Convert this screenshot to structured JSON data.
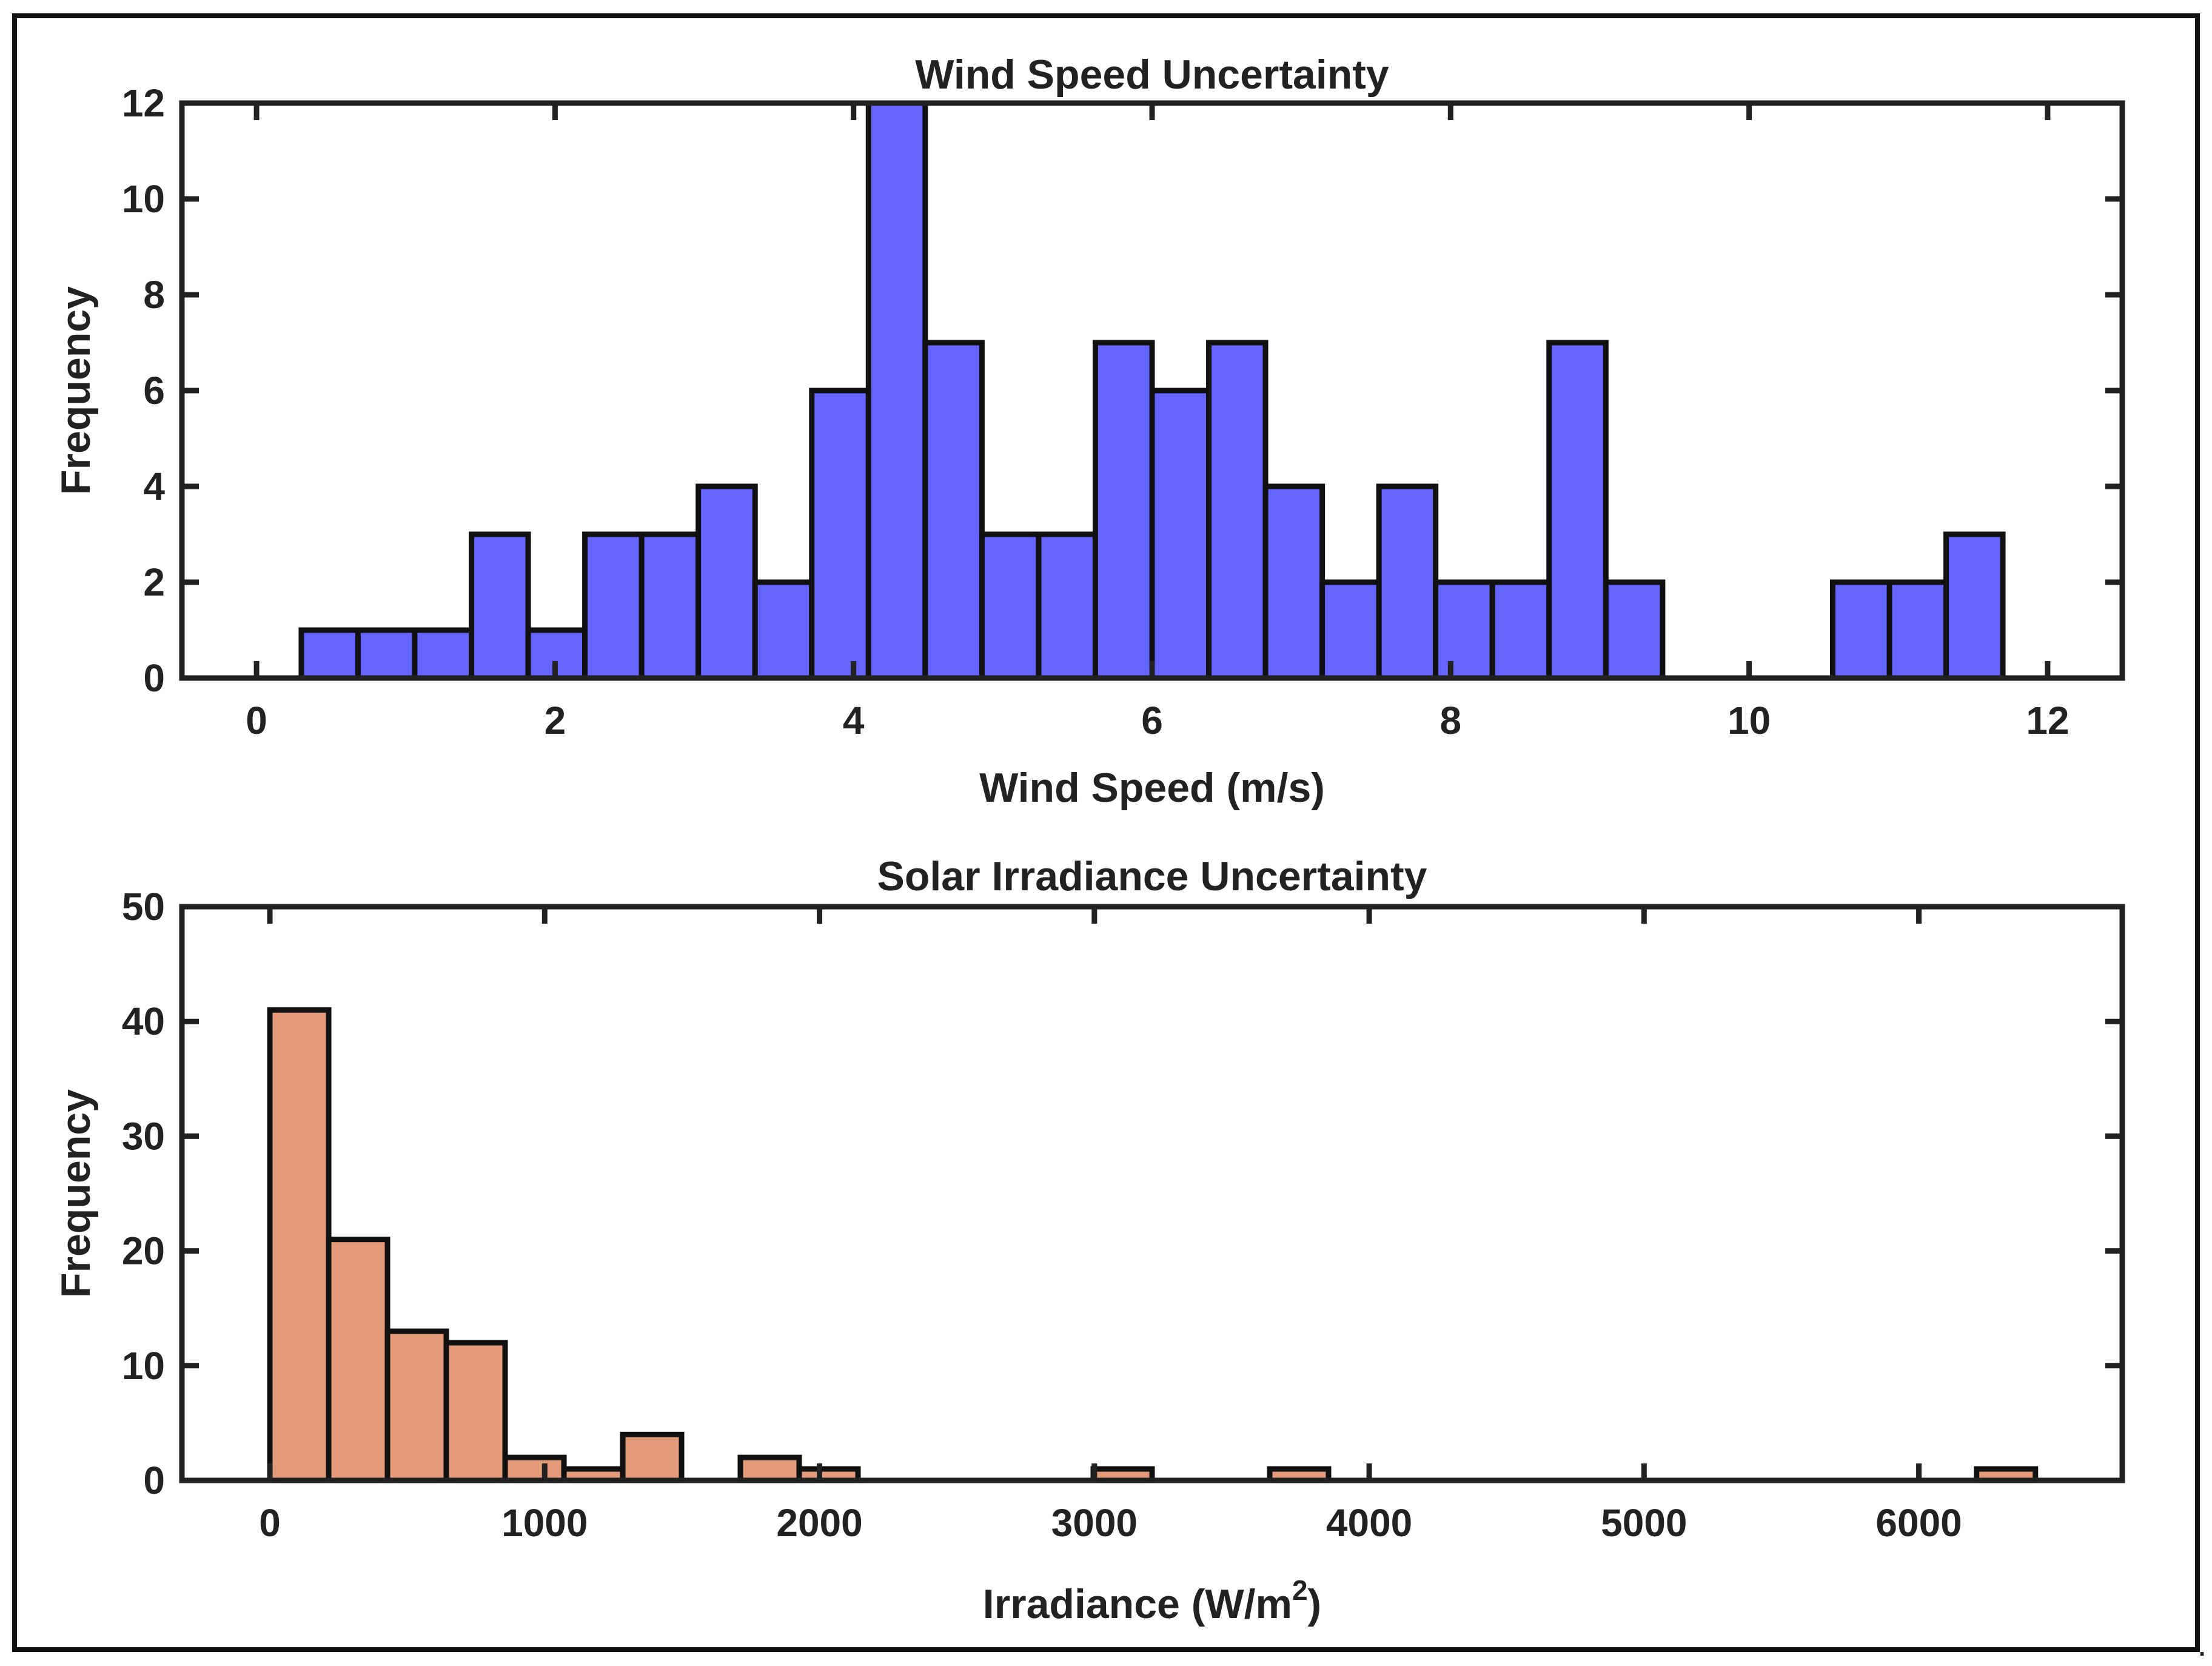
{
  "chart_data": [
    {
      "type": "bar",
      "title": "Wind Speed Uncertainty",
      "xlabel": "Wind Speed (m/s)",
      "ylabel": "Frequency",
      "xlim": [
        -0.5,
        12.5
      ],
      "ylim": [
        0,
        12
      ],
      "xticks": [
        0,
        2,
        4,
        6,
        8,
        10,
        12
      ],
      "yticks": [
        0,
        2,
        4,
        6,
        8,
        10,
        12
      ],
      "bin_width": 0.38,
      "bins": [
        {
          "x0": 0.3,
          "x1": 0.68,
          "value": 1
        },
        {
          "x0": 0.68,
          "x1": 1.06,
          "value": 1
        },
        {
          "x0": 1.06,
          "x1": 1.44,
          "value": 1
        },
        {
          "x0": 1.44,
          "x1": 1.82,
          "value": 3
        },
        {
          "x0": 1.82,
          "x1": 2.2,
          "value": 1
        },
        {
          "x0": 2.2,
          "x1": 2.58,
          "value": 3
        },
        {
          "x0": 2.58,
          "x1": 2.96,
          "value": 3
        },
        {
          "x0": 2.96,
          "x1": 3.34,
          "value": 4
        },
        {
          "x0": 3.34,
          "x1": 3.72,
          "value": 2
        },
        {
          "x0": 3.72,
          "x1": 4.1,
          "value": 6
        },
        {
          "x0": 4.1,
          "x1": 4.48,
          "value": 12
        },
        {
          "x0": 4.48,
          "x1": 4.86,
          "value": 7
        },
        {
          "x0": 4.86,
          "x1": 5.24,
          "value": 3
        },
        {
          "x0": 5.24,
          "x1": 5.62,
          "value": 3
        },
        {
          "x0": 5.62,
          "x1": 6.0,
          "value": 7
        },
        {
          "x0": 6.0,
          "x1": 6.38,
          "value": 6
        },
        {
          "x0": 6.38,
          "x1": 6.76,
          "value": 7
        },
        {
          "x0": 6.76,
          "x1": 7.14,
          "value": 4
        },
        {
          "x0": 7.14,
          "x1": 7.52,
          "value": 2
        },
        {
          "x0": 7.52,
          "x1": 7.9,
          "value": 4
        },
        {
          "x0": 7.9,
          "x1": 8.28,
          "value": 2
        },
        {
          "x0": 8.28,
          "x1": 8.66,
          "value": 2
        },
        {
          "x0": 8.66,
          "x1": 9.04,
          "value": 7
        },
        {
          "x0": 9.04,
          "x1": 9.42,
          "value": 2
        },
        {
          "x0": 10.56,
          "x1": 10.94,
          "value": 2
        },
        {
          "x0": 10.94,
          "x1": 11.32,
          "value": 2
        },
        {
          "x0": 11.32,
          "x1": 11.7,
          "value": 3
        }
      ],
      "bar_color": "#6464ff"
    },
    {
      "type": "bar",
      "title": "Solar Irradiance Uncertainty",
      "xlabel": "Irradiance (W/m",
      "xlabel_superscript": "2",
      "xlabel_suffix": ")",
      "ylabel": "Frequency",
      "xlim": [
        -320,
        6740
      ],
      "ylim": [
        0,
        50
      ],
      "xticks": [
        0,
        1000,
        2000,
        3000,
        4000,
        5000,
        6000
      ],
      "yticks": [
        0,
        10,
        20,
        30,
        40,
        50
      ],
      "bin_width": 214,
      "bins": [
        {
          "x0": 0,
          "x1": 214,
          "value": 41
        },
        {
          "x0": 214,
          "x1": 428,
          "value": 21
        },
        {
          "x0": 428,
          "x1": 642,
          "value": 13
        },
        {
          "x0": 642,
          "x1": 856,
          "value": 12
        },
        {
          "x0": 856,
          "x1": 1070,
          "value": 2
        },
        {
          "x0": 1070,
          "x1": 1284,
          "value": 1
        },
        {
          "x0": 1284,
          "x1": 1498,
          "value": 4
        },
        {
          "x0": 1712,
          "x1": 1926,
          "value": 2
        },
        {
          "x0": 1926,
          "x1": 2140,
          "value": 1
        },
        {
          "x0": 2996,
          "x1": 3210,
          "value": 1
        },
        {
          "x0": 3638,
          "x1": 3852,
          "value": 1
        },
        {
          "x0": 6210,
          "x1": 6424,
          "value": 1
        }
      ],
      "bar_color": "#e39b79"
    }
  ]
}
